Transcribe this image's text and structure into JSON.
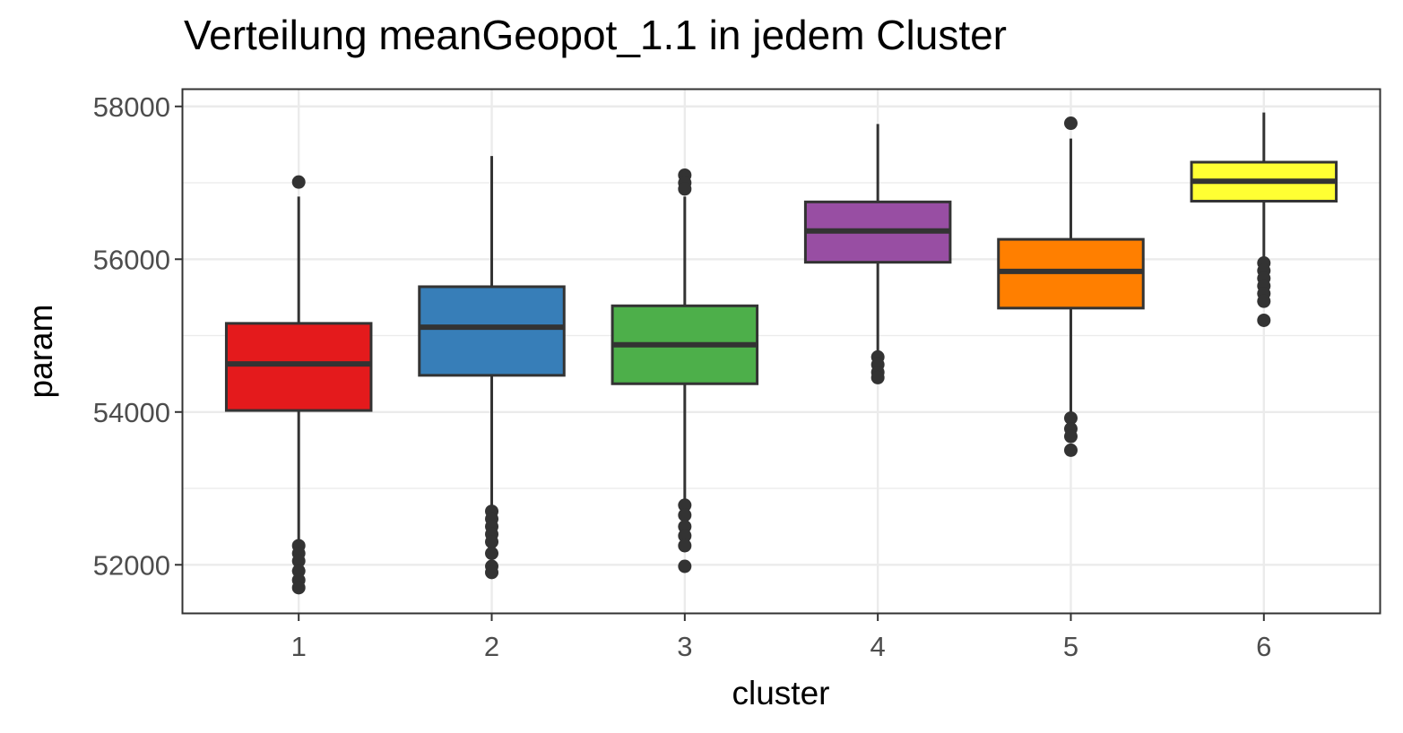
{
  "chart_data": {
    "type": "box",
    "title": "Verteilung meanGeopot_1.1 in jedem Cluster",
    "xlabel": "cluster",
    "ylabel": "param",
    "categories": [
      "1",
      "2",
      "3",
      "4",
      "5",
      "6"
    ],
    "ylim": [
      51370,
      58220
    ],
    "yticks": [
      52000,
      54000,
      56000,
      58000
    ],
    "ytick_labels": [
      "52000",
      "54000",
      "56000",
      "58000"
    ],
    "grid": true,
    "legend": "none",
    "boxes": [
      {
        "category": "1",
        "fill": "#e41a1c",
        "q1": 54020,
        "median": 54630,
        "q3": 55160,
        "whisker_low": 52300,
        "whisker_high": 56820,
        "outliers": [
          57010,
          52250,
          52150,
          52050,
          51920,
          51800,
          51700
        ]
      },
      {
        "category": "2",
        "fill": "#377eb8",
        "q1": 54480,
        "median": 55110,
        "q3": 55640,
        "whisker_low": 52750,
        "whisker_high": 57350,
        "outliers": [
          52700,
          52600,
          52500,
          52400,
          52300,
          52150,
          51980,
          51900
        ]
      },
      {
        "category": "3",
        "fill": "#4daf4a",
        "q1": 54370,
        "median": 54880,
        "q3": 55390,
        "whisker_low": 52820,
        "whisker_high": 56820,
        "outliers": [
          57100,
          57000,
          56920,
          52780,
          52650,
          52500,
          52380,
          52250,
          51980
        ]
      },
      {
        "category": "4",
        "fill": "#984ea3",
        "q1": 55960,
        "median": 56370,
        "q3": 56750,
        "whisker_low": 54800,
        "whisker_high": 57770,
        "outliers": [
          54720,
          54620,
          54520,
          54450
        ]
      },
      {
        "category": "5",
        "fill": "#ff7f00",
        "q1": 55360,
        "median": 55840,
        "q3": 56260,
        "whisker_low": 53980,
        "whisker_high": 57580,
        "outliers": [
          57780,
          53920,
          53780,
          53680,
          53500
        ]
      },
      {
        "category": "6",
        "fill": "#ffff33",
        "q1": 56760,
        "median": 57020,
        "q3": 57270,
        "whisker_low": 56000,
        "whisker_high": 57920,
        "outliers": [
          55950,
          55850,
          55750,
          55650,
          55550,
          55450,
          55200
        ]
      }
    ]
  }
}
